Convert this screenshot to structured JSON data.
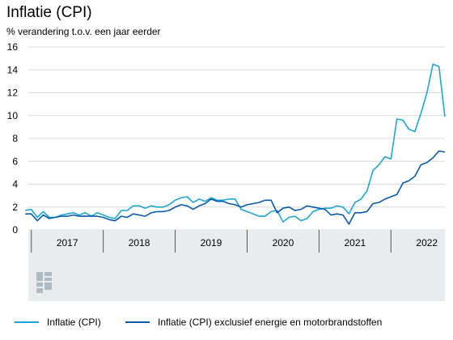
{
  "chart_data": {
    "type": "line",
    "title": "Inflatie (CPI)",
    "subtitle": "% verandering t.o.v. een jaar eerder",
    "ylim": [
      0,
      16
    ],
    "yticks": [
      0,
      2,
      4,
      6,
      8,
      10,
      12,
      14,
      16
    ],
    "grid": "horizontal",
    "legend_position": "bottom",
    "x_range": [
      2016.9583,
      2022.75
    ],
    "x_labels": [
      {
        "label": "2017",
        "year": 2017
      },
      {
        "label": "2018",
        "year": 2018
      },
      {
        "label": "2019",
        "year": 2019
      },
      {
        "label": "2020",
        "year": 2020
      },
      {
        "label": "2021",
        "year": 2021
      },
      {
        "label": "2022",
        "year": 2022
      }
    ],
    "x_start": "2016-12",
    "series": [
      {
        "name": "Inflatie (CPI)",
        "color": "#1fa6d2",
        "values": [
          1.7,
          1.8,
          1.1,
          1.6,
          1.1,
          1.1,
          1.3,
          1.4,
          1.5,
          1.3,
          1.5,
          1.2,
          1.5,
          1.3,
          1.1,
          1.0,
          1.7,
          1.7,
          2.1,
          2.1,
          1.9,
          2.1,
          2.0,
          2.0,
          2.2,
          2.6,
          2.8,
          2.9,
          2.4,
          2.7,
          2.5,
          2.8,
          2.6,
          2.6,
          2.7,
          2.7,
          1.8,
          1.6,
          1.4,
          1.2,
          1.2,
          1.6,
          1.7,
          0.7,
          1.1,
          1.2,
          0.8,
          1.0,
          1.6,
          1.8,
          1.9,
          1.9,
          2.1,
          2.0,
          1.4,
          2.4,
          2.7,
          3.4,
          5.2,
          5.7,
          6.4,
          6.2,
          9.7,
          9.6,
          8.8,
          8.6,
          10.2,
          12.0,
          14.5,
          14.3,
          9.9
        ]
      },
      {
        "name": "Inflatie (CPI) exclusief energie en motorbrandstoffen",
        "color": "#0b5aa9",
        "values": [
          1.4,
          1.4,
          0.8,
          1.3,
          1.0,
          1.1,
          1.2,
          1.2,
          1.3,
          1.2,
          1.2,
          1.2,
          1.2,
          1.1,
          0.9,
          0.8,
          1.2,
          1.1,
          1.4,
          1.3,
          1.2,
          1.5,
          1.6,
          1.6,
          1.7,
          2.0,
          2.2,
          2.1,
          1.8,
          2.1,
          2.3,
          2.7,
          2.5,
          2.5,
          2.3,
          2.2,
          2.0,
          2.2,
          2.3,
          2.4,
          2.6,
          2.6,
          1.5,
          1.9,
          2.0,
          1.7,
          1.8,
          2.1,
          2.0,
          1.9,
          1.8,
          1.3,
          1.4,
          1.3,
          0.5,
          1.5,
          1.5,
          1.6,
          2.3,
          2.4,
          2.7,
          2.9,
          3.1,
          4.1,
          4.3,
          4.7,
          5.7,
          5.9,
          6.3,
          6.9,
          6.8
        ]
      }
    ]
  },
  "logo": {
    "name": "cbs-logo"
  }
}
